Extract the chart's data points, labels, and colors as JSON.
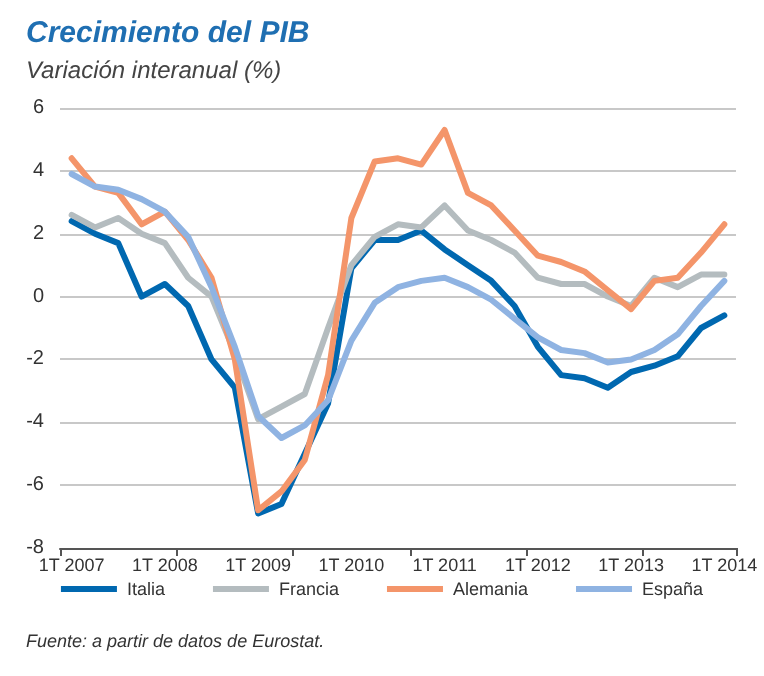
{
  "chart_data": {
    "type": "line",
    "title": "Crecimiento del PIB",
    "subtitle": "Variación interanual (%)",
    "categories": [
      "1T 2007",
      null,
      null,
      null,
      "1T 2008",
      null,
      null,
      null,
      "1T 2009",
      null,
      null,
      null,
      "1T 2010",
      null,
      null,
      null,
      "1T 2011",
      null,
      null,
      null,
      "1T 2012",
      null,
      null,
      null,
      "1T 2013",
      null,
      null,
      null,
      "1T 2014"
    ],
    "series": [
      {
        "name": "Italia",
        "color": "#0068b0",
        "values": [
          2.4,
          2.0,
          1.7,
          0.0,
          0.4,
          -0.3,
          -2.0,
          -2.9,
          -6.9,
          -6.6,
          -5.0,
          -3.4,
          0.9,
          1.8,
          1.8,
          2.1,
          1.5,
          1.0,
          0.5,
          -0.3,
          -1.6,
          -2.5,
          -2.6,
          -2.9,
          -2.4,
          -2.2,
          -1.9,
          -1.0,
          -0.6
        ]
      },
      {
        "name": "Francia",
        "color": "#b4bcbf",
        "values": [
          2.6,
          2.2,
          2.5,
          2.0,
          1.7,
          0.6,
          0.0,
          -1.8,
          -3.9,
          -3.5,
          -3.1,
          -1.0,
          1.0,
          1.9,
          2.3,
          2.2,
          2.9,
          2.1,
          1.8,
          1.4,
          0.6,
          0.4,
          0.4,
          0.0,
          -0.3,
          0.6,
          0.3,
          0.7,
          0.7
        ]
      },
      {
        "name": "Alemania",
        "color": "#f4956a",
        "values": [
          4.4,
          3.5,
          3.3,
          2.3,
          2.7,
          1.8,
          0.6,
          -2.0,
          -6.8,
          -6.2,
          -5.2,
          -2.5,
          2.5,
          4.3,
          4.4,
          4.2,
          5.3,
          3.3,
          2.9,
          2.1,
          1.3,
          1.1,
          0.8,
          0.2,
          -0.4,
          0.5,
          0.6,
          1.4,
          2.3
        ]
      },
      {
        "name": "España",
        "color": "#8fb3e2",
        "values": [
          3.9,
          3.5,
          3.4,
          3.1,
          2.7,
          1.9,
          0.3,
          -1.6,
          -3.8,
          -4.5,
          -4.1,
          -3.3,
          -1.4,
          -0.2,
          0.3,
          0.5,
          0.6,
          0.3,
          -0.1,
          -0.7,
          -1.3,
          -1.7,
          -1.8,
          -2.1,
          -2.0,
          -1.7,
          -1.2,
          -0.3,
          0.5
        ]
      }
    ],
    "ylim": [
      -8,
      6
    ],
    "yticks": [
      -8,
      -6,
      -4,
      -2,
      0,
      2,
      4,
      6
    ],
    "grid": "y",
    "legend": "bottom",
    "marker": "none",
    "line_style": "solid",
    "annotations": [
      "Fuente: a partir de datos de Eurostat."
    ]
  }
}
